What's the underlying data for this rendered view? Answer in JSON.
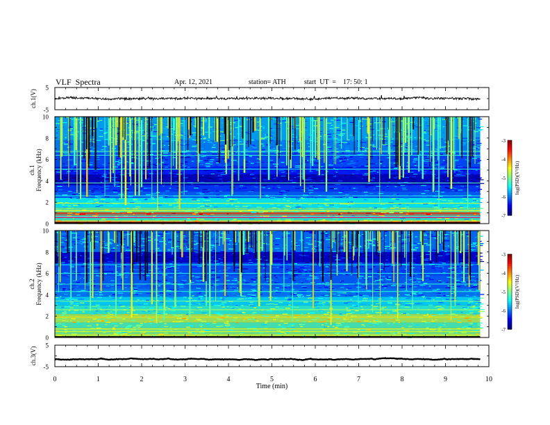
{
  "header": {
    "title": "VLF  Spectra",
    "date": "Apr. 12, 2021",
    "station": "station= ATH",
    "start": "start  UT  =    17: 50: 1"
  },
  "colors": {
    "spectrogram_background": "#0a1f8a",
    "waveform_line": "#000000",
    "axis": "#000000"
  },
  "chart_data": [
    {
      "type": "line",
      "name": "ch1-waveform",
      "ylabel": "ch.1(V)",
      "ylim": [
        -5,
        5
      ],
      "yticks": [
        "5",
        "-5"
      ],
      "xlim": [
        0,
        10
      ],
      "x_end": 9.8,
      "level_v": 0.1,
      "amplitude_v": 1.0
    },
    {
      "type": "heatmap",
      "name": "ch1-spectrogram",
      "ylabel": "ch.1\nFrequency  (kHz)",
      "ylim": [
        0,
        10
      ],
      "yticks": [
        "0",
        "2",
        "4",
        "6",
        "8",
        "10"
      ],
      "xlim": [
        0,
        10
      ],
      "x_end": 9.8,
      "colorbar": {
        "label": "log(PSD)(V²/Hz)",
        "range": [
          -7,
          -3
        ],
        "ticks": [
          "-3",
          "-4",
          "-5",
          "-6",
          "-7"
        ]
      }
    },
    {
      "type": "heatmap",
      "name": "ch2-spectrogram",
      "ylabel": "ch.2\nFrequency  (kHz)",
      "ylim": [
        0,
        10
      ],
      "yticks": [
        "0",
        "2",
        "4",
        "6",
        "8",
        "10"
      ],
      "xlim": [
        0,
        10
      ],
      "x_end": 9.8,
      "colorbar": {
        "label": "log(PSD)(V²/Hz)",
        "range": [
          -7,
          -3
        ],
        "ticks": [
          "-3",
          "-4",
          "-5",
          "-6",
          "-7"
        ]
      }
    },
    {
      "type": "line",
      "name": "ch3-waveform",
      "ylabel": "ch.3(V)",
      "ylim": [
        -5,
        5
      ],
      "yticks": [
        "5",
        "-5"
      ],
      "xlim": [
        0,
        10
      ],
      "x_end": 9.8,
      "level_v": -1.5,
      "amplitude_v": 0.15,
      "xlabel": "Time  (min)",
      "xticks": [
        "0",
        "1",
        "2",
        "3",
        "4",
        "5",
        "6",
        "7",
        "8",
        "9",
        "10"
      ]
    }
  ]
}
